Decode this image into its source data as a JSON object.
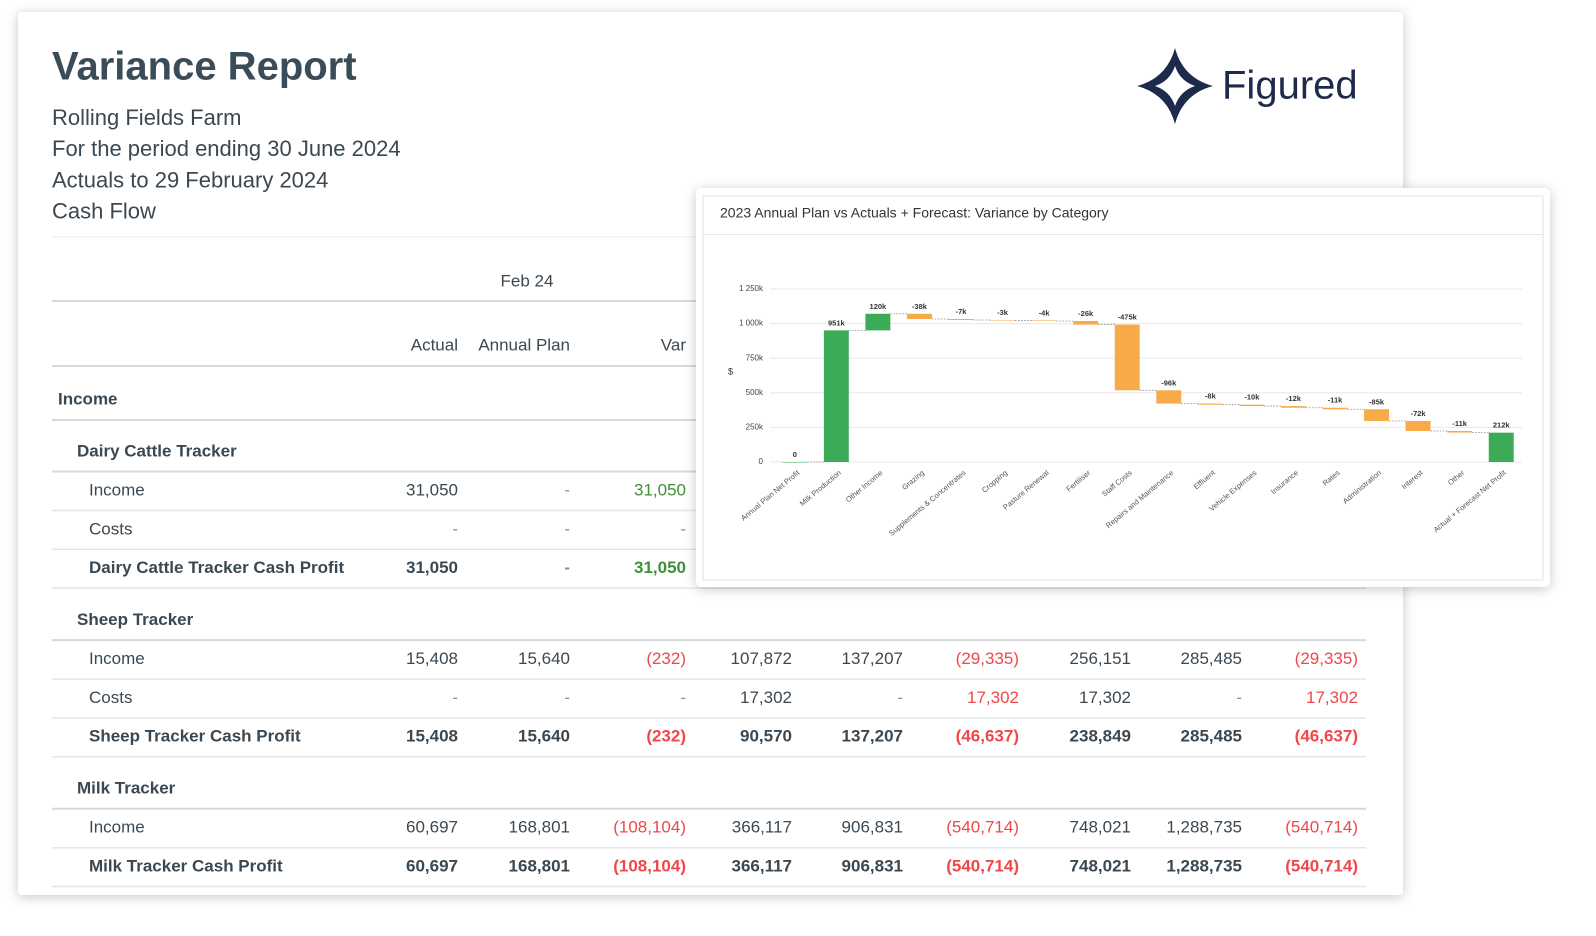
{
  "report": {
    "title": "Variance Report",
    "lines": [
      "Rolling Fields Farm",
      "For the period ending 30 June 2024",
      "Actuals to 29 February 2024",
      "Cash Flow"
    ],
    "logo": "Figured",
    "period": "Feb 24",
    "columns": [
      "Actual",
      "Annual Plan",
      "Var"
    ],
    "section": "Income",
    "groups": [
      {
        "name": "Dairy Cattle Tracker",
        "var_color": "#3f8f3a",
        "rows": [
          {
            "label": "Income",
            "cells": [
              "31,050",
              "-",
              "31,050"
            ]
          },
          {
            "label": "Costs",
            "cells": [
              "-",
              "-",
              "-"
            ]
          },
          {
            "label": "Dairy Cattle Tracker Cash Profit",
            "bold": true,
            "cells": [
              "31,050",
              "-",
              "31,050"
            ]
          }
        ]
      },
      {
        "name": "Sheep Tracker",
        "var_color": "#f0474a",
        "rows": [
          {
            "label": "Income",
            "cells": [
              "15,408",
              "15,640",
              "(232)",
              "107,872",
              "137,207",
              "(29,335)",
              "256,151",
              "285,485",
              "(29,335)"
            ]
          },
          {
            "label": "Costs",
            "cells": [
              "-",
              "-",
              "-",
              "17,302",
              "-",
              "17,302",
              "17,302",
              "-",
              "17,302"
            ]
          },
          {
            "label": "Sheep Tracker Cash Profit",
            "bold": true,
            "cells": [
              "15,408",
              "15,640",
              "(232)",
              "90,570",
              "137,207",
              "(46,637)",
              "238,849",
              "285,485",
              "(46,637)"
            ]
          }
        ]
      },
      {
        "name": "Milk Tracker",
        "var_color": "#f0474a",
        "rows": [
          {
            "label": "Income",
            "cells": [
              "60,697",
              "168,801",
              "(108,104)",
              "366,117",
              "906,831",
              "(540,714)",
              "748,021",
              "1,288,735",
              "(540,714)"
            ]
          },
          {
            "label": "Milk Tracker Cash Profit",
            "bold": true,
            "cells": [
              "60,697",
              "168,801",
              "(108,104)",
              "366,117",
              "906,831",
              "(540,714)",
              "748,021",
              "1,288,735",
              "(540,714)"
            ]
          }
        ]
      }
    ]
  },
  "chart_data": {
    "type": "waterfall",
    "title": "2023 Annual Plan vs Actuals + Forecast: Variance by Category",
    "y_label": "$",
    "categories": [
      "Annual Plan Net Profit",
      "Milk Production",
      "Other Income",
      "Grazing",
      "Supplements & Concentrates",
      "Cropping",
      "Pasture Renewal",
      "Fertiliser",
      "Staff Costs",
      "Repairs and Maintenance",
      "Effluent",
      "Vehicle Expenses",
      "Insurance",
      "Rates",
      "Administration",
      "Interest",
      "Other",
      "Actual + Forecast Net Profit"
    ],
    "values": [
      0,
      951000,
      120000,
      -38000,
      -7000,
      -3000,
      -4000,
      -26000,
      -475000,
      -96000,
      -8000,
      -10000,
      -12000,
      -11000,
      -85000,
      -72000,
      -11000,
      212000
    ],
    "value_labels": [
      "0",
      "951k",
      "120k",
      "-38k",
      "-7k",
      "-3k",
      "-4k",
      "-26k",
      "-475k",
      "-96k",
      "-8k",
      "-10k",
      "-12k",
      "-11k",
      "-85k",
      "-72k",
      "-11k",
      "212k"
    ],
    "colors": {
      "increase": "#3bab58",
      "decrease": "#f6aa48",
      "total": "#3bab58"
    },
    "ylim": [
      0,
      1250000
    ],
    "yticks": [
      0,
      {
        "value": 250000,
        "label": "250k"
      },
      {
        "value": 500000,
        "label": "500k"
      },
      {
        "value": 750000,
        "label": "750k"
      },
      {
        "value": 1000000,
        "label": "1 000k"
      },
      {
        "value": 1250000,
        "label": "1 250k"
      }
    ],
    "grid": true
  }
}
